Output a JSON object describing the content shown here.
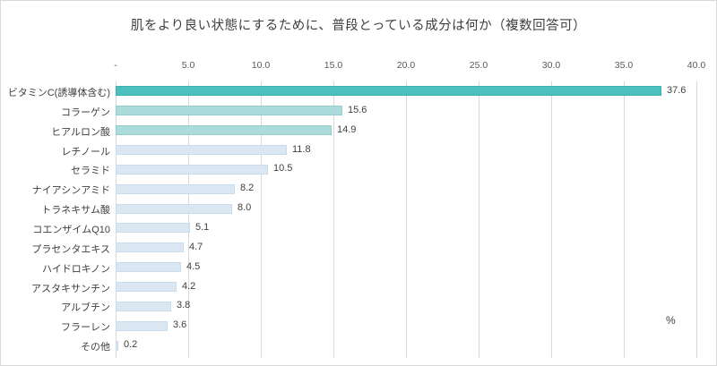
{
  "chart_data": {
    "type": "bar",
    "orientation": "horizontal",
    "title": "肌をより良い状態にするために、普段とっている成分は何か（複数回答可）",
    "unit_label": "%",
    "xlabel": "",
    "ylabel": "",
    "xlim": [
      0,
      40
    ],
    "grid": true,
    "legend_position": "none",
    "tick_values": [
      0,
      5,
      10,
      15,
      20,
      25,
      30,
      35,
      40
    ],
    "tick_labels": [
      "-",
      "5.0",
      "10.0",
      "15.0",
      "20.0",
      "25.0",
      "30.0",
      "35.0",
      "40.0"
    ],
    "categories": [
      "ビタミンC(誘導体含む)",
      "コラーゲン",
      "ヒアルロン酸",
      "レチノール",
      "セラミド",
      "ナイアシンアミド",
      "トラネキサム酸",
      "コエンザイムQ10",
      "プラセンタエキス",
      "ハイドロキノン",
      "アスタキサンチン",
      "アルブチン",
      "フラーレン",
      "その他"
    ],
    "values": [
      37.6,
      15.6,
      14.9,
      11.8,
      10.5,
      8.2,
      8.0,
      5.1,
      4.7,
      4.5,
      4.2,
      3.8,
      3.6,
      0.2
    ],
    "value_labels": [
      "37.6",
      "15.6",
      "14.9",
      "11.8",
      "10.5",
      "8.2",
      "8.0",
      "5.1",
      "4.7",
      "4.5",
      "4.2",
      "3.8",
      "3.6",
      "0.2"
    ],
    "bar_fill_colors": [
      "#4cbfbe",
      "#abdbda",
      "#abdbda",
      "#dae7f3",
      "#dae7f3",
      "#dae7f3",
      "#dae7f3",
      "#dae7f3",
      "#dae7f3",
      "#dae7f3",
      "#dae7f3",
      "#dae7f3",
      "#dae7f3",
      "#dae7f3"
    ],
    "bar_border_colors": [
      "#3bb0af",
      "#93cecd",
      "#93cecd",
      "#c8dcee",
      "#c8dcee",
      "#c8dcee",
      "#c8dcee",
      "#c8dcee",
      "#c8dcee",
      "#c8dcee",
      "#c8dcee",
      "#c8dcee",
      "#c8dcee",
      "#c8dcee"
    ],
    "colors": {
      "background": "#ffffff",
      "border": "#d9d9d9",
      "gridline": "#d9d9d9",
      "tick_text": "#595959",
      "label_text": "#404040",
      "title_text": "#3f3f3f",
      "highlight_teal": "#4cbfbe",
      "light_teal": "#abdbda",
      "light_blue": "#dae7f3"
    }
  }
}
